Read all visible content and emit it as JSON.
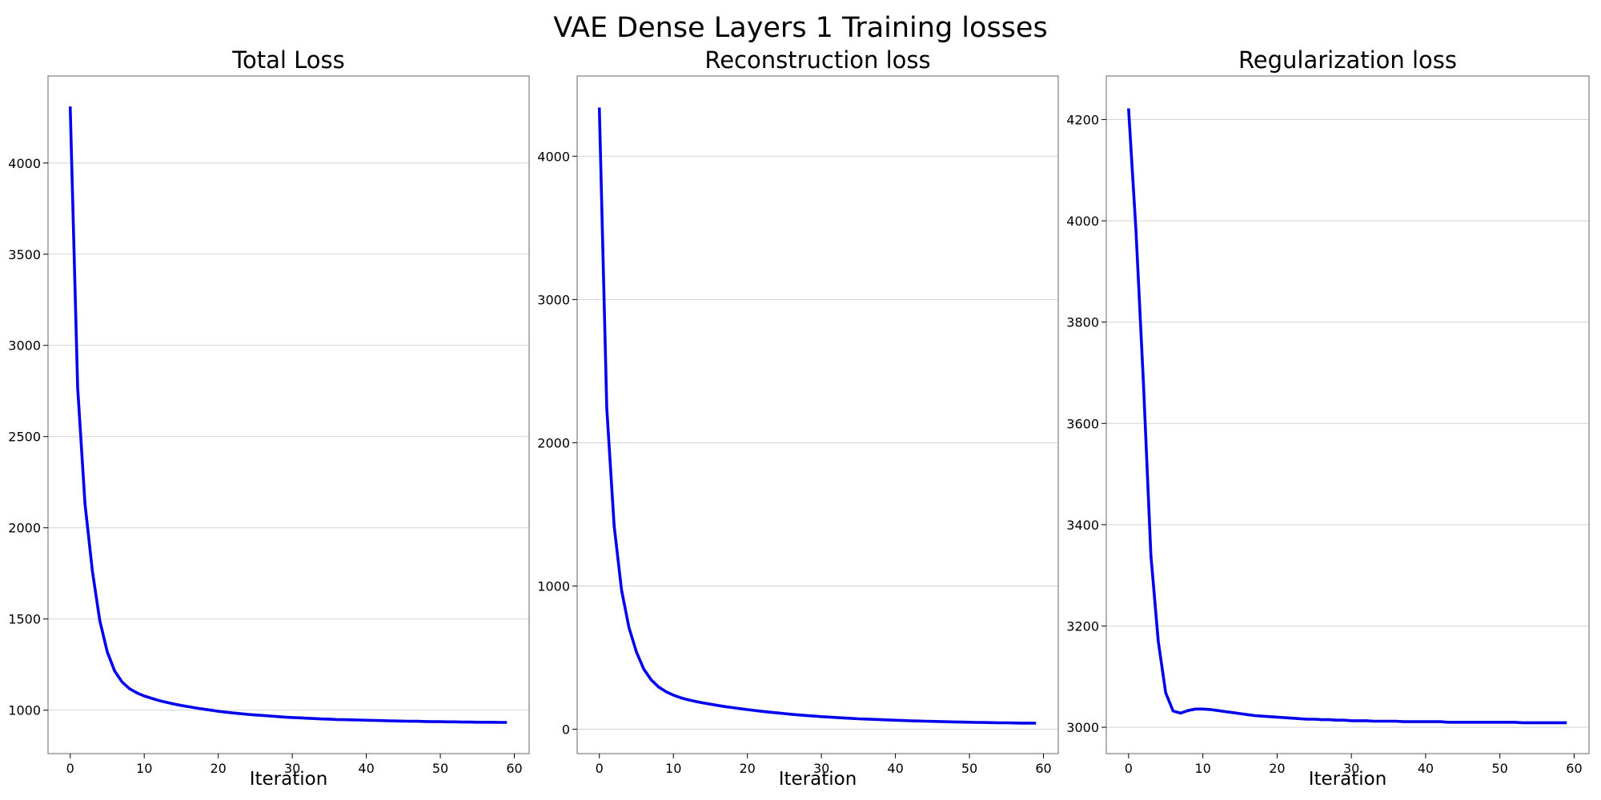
{
  "figure": {
    "title": "VAE Dense Layers 1 Training losses",
    "line_color": "#0000ee",
    "grid_color": "#d3d3d3",
    "frame_color": "#808080"
  },
  "chart_data": [
    {
      "type": "line",
      "title": "Total Loss",
      "xlabel": "Iteration",
      "ylabel": "",
      "grid": "horizontal",
      "xlim": [
        -3,
        62
      ],
      "ylim": [
        762,
        4477
      ],
      "xticks": [
        0,
        10,
        20,
        30,
        40,
        50,
        60
      ],
      "yticks": [
        1000,
        1500,
        2000,
        2500,
        3000,
        3500,
        4000
      ],
      "series": [
        {
          "x": [
            0,
            1,
            2,
            3,
            4,
            5,
            6,
            7,
            8,
            9,
            10,
            11,
            12,
            13,
            14,
            15,
            16,
            17,
            18,
            19,
            20,
            21,
            22,
            23,
            24,
            25,
            26,
            27,
            28,
            29,
            30,
            31,
            32,
            33,
            34,
            35,
            36,
            37,
            38,
            39,
            40,
            41,
            42,
            43,
            44,
            45,
            46,
            47,
            48,
            49,
            50,
            51,
            52,
            53,
            54,
            55,
            56,
            57,
            58,
            59
          ],
          "y": [
            4310,
            2770,
            2130,
            1760,
            1490,
            1320,
            1215,
            1155,
            1118,
            1095,
            1078,
            1065,
            1053,
            1043,
            1034,
            1026,
            1019,
            1012,
            1006,
            1000,
            994,
            989,
            985,
            981,
            977,
            974,
            971,
            968,
            965,
            962,
            960,
            958,
            956,
            954,
            952,
            951,
            949,
            948,
            947,
            946,
            945,
            944,
            943,
            942,
            941,
            940,
            939,
            939,
            938,
            937,
            937,
            936,
            936,
            935,
            935,
            934,
            934,
            934,
            933,
            933
          ]
        }
      ]
    },
    {
      "type": "line",
      "title": "Reconstruction loss",
      "xlabel": "Iteration",
      "ylabel": "",
      "grid": "horizontal",
      "xlim": [
        -3,
        62
      ],
      "ylim": [
        -170,
        4560
      ],
      "xticks": [
        0,
        10,
        20,
        30,
        40,
        50,
        60
      ],
      "yticks": [
        0,
        1000,
        2000,
        3000,
        4000
      ],
      "series": [
        {
          "x": [
            0,
            1,
            2,
            3,
            4,
            5,
            6,
            7,
            8,
            9,
            10,
            11,
            12,
            13,
            14,
            15,
            16,
            17,
            18,
            19,
            20,
            21,
            22,
            23,
            24,
            25,
            26,
            27,
            28,
            29,
            30,
            31,
            32,
            33,
            34,
            35,
            36,
            37,
            38,
            39,
            40,
            41,
            42,
            43,
            44,
            45,
            46,
            47,
            48,
            49,
            50,
            51,
            52,
            53,
            54,
            55,
            56,
            57,
            58,
            59
          ],
          "y": [
            4340,
            2240,
            1420,
            970,
            710,
            540,
            420,
            345,
            295,
            262,
            238,
            220,
            206,
            194,
            184,
            175,
            166,
            158,
            151,
            144,
            137,
            131,
            125,
            119,
            114,
            109,
            104,
            100,
            96,
            92,
            88,
            85,
            82,
            79,
            76,
            73,
            71,
            69,
            67,
            65,
            63,
            61,
            59,
            58,
            56,
            55,
            54,
            52,
            51,
            50,
            49,
            48,
            47,
            46,
            45,
            45,
            44,
            43,
            43,
            42
          ]
        }
      ]
    },
    {
      "type": "line",
      "title": "Regularization loss",
      "xlabel": "Iteration",
      "ylabel": "",
      "grid": "horizontal",
      "xlim": [
        -3,
        62
      ],
      "ylim": [
        2948,
        4286
      ],
      "xticks": [
        0,
        10,
        20,
        30,
        40,
        50,
        60
      ],
      "yticks": [
        3000,
        3200,
        3400,
        3600,
        3800,
        4000,
        4200
      ],
      "series": [
        {
          "x": [
            0,
            1,
            2,
            3,
            4,
            5,
            6,
            7,
            8,
            9,
            10,
            11,
            12,
            13,
            14,
            15,
            16,
            17,
            18,
            19,
            20,
            21,
            22,
            23,
            24,
            25,
            26,
            27,
            28,
            29,
            30,
            31,
            32,
            33,
            34,
            35,
            36,
            37,
            38,
            39,
            40,
            41,
            42,
            43,
            44,
            45,
            46,
            47,
            48,
            49,
            50,
            51,
            52,
            53,
            54,
            55,
            56,
            57,
            58,
            59
          ],
          "y": [
            4222,
            3980,
            3680,
            3340,
            3170,
            3068,
            3032,
            3028,
            3033,
            3036,
            3036,
            3035,
            3033,
            3031,
            3029,
            3027,
            3025,
            3023,
            3022,
            3021,
            3020,
            3019,
            3018,
            3017,
            3016,
            3016,
            3015,
            3015,
            3014,
            3014,
            3013,
            3013,
            3013,
            3012,
            3012,
            3012,
            3012,
            3011,
            3011,
            3011,
            3011,
            3011,
            3011,
            3010,
            3010,
            3010,
            3010,
            3010,
            3010,
            3010,
            3010,
            3010,
            3010,
            3009,
            3009,
            3009,
            3009,
            3009,
            3009,
            3009
          ]
        }
      ]
    }
  ]
}
